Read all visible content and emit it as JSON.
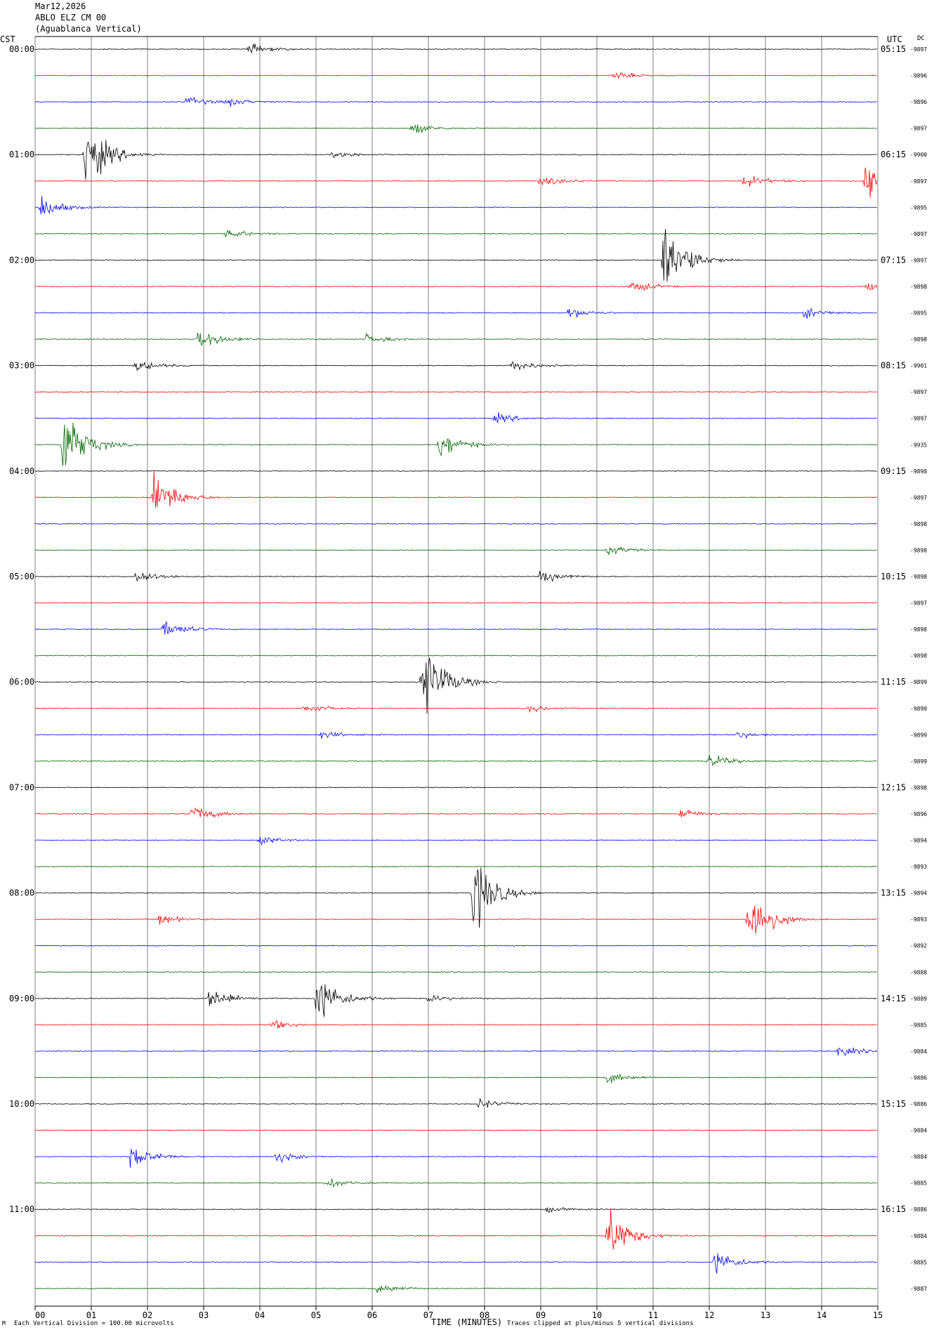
{
  "header": {
    "date": "Mar12,2026",
    "station": "ABLO ELZ CM 00",
    "location": "(Aguablanca Vertical)"
  },
  "left_axis_title": "CST",
  "right_axis_title": "UTC",
  "dc_title": "DC",
  "footer": {
    "scale_note": "Each Vertical Division = 100.00 microvolts",
    "xlabel": "TIME (MINUTES)",
    "clip_note": "Traces clipped at plus/minus 5 vertical divisions",
    "mark": "M"
  },
  "colors": {
    "black": "#000000",
    "red": "#ff0000",
    "blue": "#0000ff",
    "green": "#006400",
    "grid": "#808080"
  },
  "chart_data": {
    "type": "line",
    "title": "",
    "xlabel": "TIME (MINUTES)",
    "ylabel": "",
    "xlim": [
      0,
      15
    ],
    "x_ticks": [
      "00",
      "01",
      "02",
      "03",
      "04",
      "05",
      "06",
      "07",
      "08",
      "09",
      "10",
      "11",
      "12",
      "13",
      "14",
      "15"
    ],
    "trace_color_cycle": [
      "black",
      "red",
      "blue",
      "green"
    ],
    "minutes_per_trace": 15,
    "left_hour_labels": [
      "00:00",
      "01:00",
      "02:00",
      "03:00",
      "04:00",
      "05:00",
      "06:00",
      "07:00",
      "08:00",
      "09:00",
      "10:00",
      "11:00"
    ],
    "right_hour_labels": [
      "05:15",
      "06:15",
      "07:15",
      "08:15",
      "09:15",
      "10:15",
      "11:15",
      "12:15",
      "13:15",
      "14:15",
      "15:15",
      "16:15"
    ],
    "dc_offsets": [
      "9897",
      "9896",
      "9896",
      "9897",
      "9900",
      "9897",
      "9895",
      "9897",
      "9897",
      "9898",
      "9895",
      "9898",
      "9901",
      "9897",
      "9897",
      "9935",
      "9898",
      "9897",
      "9898",
      "9898",
      "9898",
      "9897",
      "9898",
      "9898",
      "9899",
      "9899",
      "9899",
      "9899",
      "9898",
      "9896",
      "9894",
      "9893",
      "9894",
      "9893",
      "9892",
      "9888",
      "9889",
      "9885",
      "9884",
      "9886",
      "9886",
      "9884",
      "9884",
      "9885",
      "9886",
      "9884",
      "9885",
      "9887"
    ],
    "events": [
      {
        "trace": 0,
        "minute": 3.8,
        "amp": 0.5
      },
      {
        "trace": 1,
        "minute": 10.3,
        "amp": 0.4
      },
      {
        "trace": 2,
        "minute": 2.7,
        "amp": 0.5
      },
      {
        "trace": 2,
        "minute": 3.4,
        "amp": 0.4
      },
      {
        "trace": 3,
        "minute": 6.7,
        "amp": 0.6
      },
      {
        "trace": 4,
        "minute": 0.9,
        "amp": 3.5
      },
      {
        "trace": 4,
        "minute": 5.3,
        "amp": 0.4
      },
      {
        "trace": 5,
        "minute": 9.0,
        "amp": 0.6
      },
      {
        "trace": 5,
        "minute": 12.6,
        "amp": 0.7
      },
      {
        "trace": 5,
        "minute": 14.8,
        "amp": 2.5
      },
      {
        "trace": 6,
        "minute": 0.1,
        "amp": 1.2
      },
      {
        "trace": 7,
        "minute": 3.4,
        "amp": 0.5
      },
      {
        "trace": 8,
        "minute": 11.2,
        "amp": 4.5
      },
      {
        "trace": 9,
        "minute": 10.6,
        "amp": 0.7
      },
      {
        "trace": 9,
        "minute": 14.8,
        "amp": 0.6
      },
      {
        "trace": 10,
        "minute": 9.5,
        "amp": 0.6
      },
      {
        "trace": 10,
        "minute": 13.7,
        "amp": 0.6
      },
      {
        "trace": 11,
        "minute": 2.9,
        "amp": 1.2
      },
      {
        "trace": 11,
        "minute": 5.9,
        "amp": 0.5
      },
      {
        "trace": 12,
        "minute": 1.8,
        "amp": 0.6
      },
      {
        "trace": 12,
        "minute": 8.5,
        "amp": 0.6
      },
      {
        "trace": 14,
        "minute": 8.2,
        "amp": 0.5
      },
      {
        "trace": 15,
        "minute": 0.5,
        "amp": 4.0
      },
      {
        "trace": 15,
        "minute": 7.2,
        "amp": 1.5
      },
      {
        "trace": 17,
        "minute": 2.1,
        "amp": 3.0
      },
      {
        "trace": 19,
        "minute": 10.2,
        "amp": 0.5
      },
      {
        "trace": 20,
        "minute": 1.8,
        "amp": 0.7
      },
      {
        "trace": 20,
        "minute": 9.0,
        "amp": 0.7
      },
      {
        "trace": 22,
        "minute": 2.3,
        "amp": 0.9
      },
      {
        "trace": 24,
        "minute": 6.9,
        "amp": 4.5
      },
      {
        "trace": 25,
        "minute": 4.8,
        "amp": 0.5
      },
      {
        "trace": 25,
        "minute": 8.8,
        "amp": 0.4
      },
      {
        "trace": 26,
        "minute": 5.1,
        "amp": 0.4
      },
      {
        "trace": 26,
        "minute": 12.5,
        "amp": 0.4
      },
      {
        "trace": 27,
        "minute": 12.0,
        "amp": 0.7
      },
      {
        "trace": 29,
        "minute": 2.8,
        "amp": 0.9
      },
      {
        "trace": 29,
        "minute": 11.5,
        "amp": 0.6
      },
      {
        "trace": 30,
        "minute": 4.0,
        "amp": 0.4
      },
      {
        "trace": 32,
        "minute": 7.8,
        "amp": 4.0
      },
      {
        "trace": 33,
        "minute": 12.7,
        "amp": 3.5
      },
      {
        "trace": 33,
        "minute": 2.2,
        "amp": 0.5
      },
      {
        "trace": 36,
        "minute": 3.1,
        "amp": 1.2
      },
      {
        "trace": 36,
        "minute": 5.0,
        "amp": 3.0
      },
      {
        "trace": 36,
        "minute": 7.0,
        "amp": 0.4
      },
      {
        "trace": 37,
        "minute": 4.2,
        "amp": 0.5
      },
      {
        "trace": 38,
        "minute": 14.3,
        "amp": 0.6
      },
      {
        "trace": 39,
        "minute": 10.2,
        "amp": 0.6
      },
      {
        "trace": 40,
        "minute": 7.9,
        "amp": 0.5
      },
      {
        "trace": 42,
        "minute": 1.7,
        "amp": 1.2
      },
      {
        "trace": 42,
        "minute": 4.3,
        "amp": 0.6
      },
      {
        "trace": 43,
        "minute": 5.2,
        "amp": 0.5
      },
      {
        "trace": 44,
        "minute": 9.1,
        "amp": 0.3
      },
      {
        "trace": 45,
        "minute": 10.2,
        "amp": 2.8
      },
      {
        "trace": 46,
        "minute": 12.1,
        "amp": 1.3
      },
      {
        "trace": 47,
        "minute": 6.1,
        "amp": 0.5
      }
    ]
  }
}
